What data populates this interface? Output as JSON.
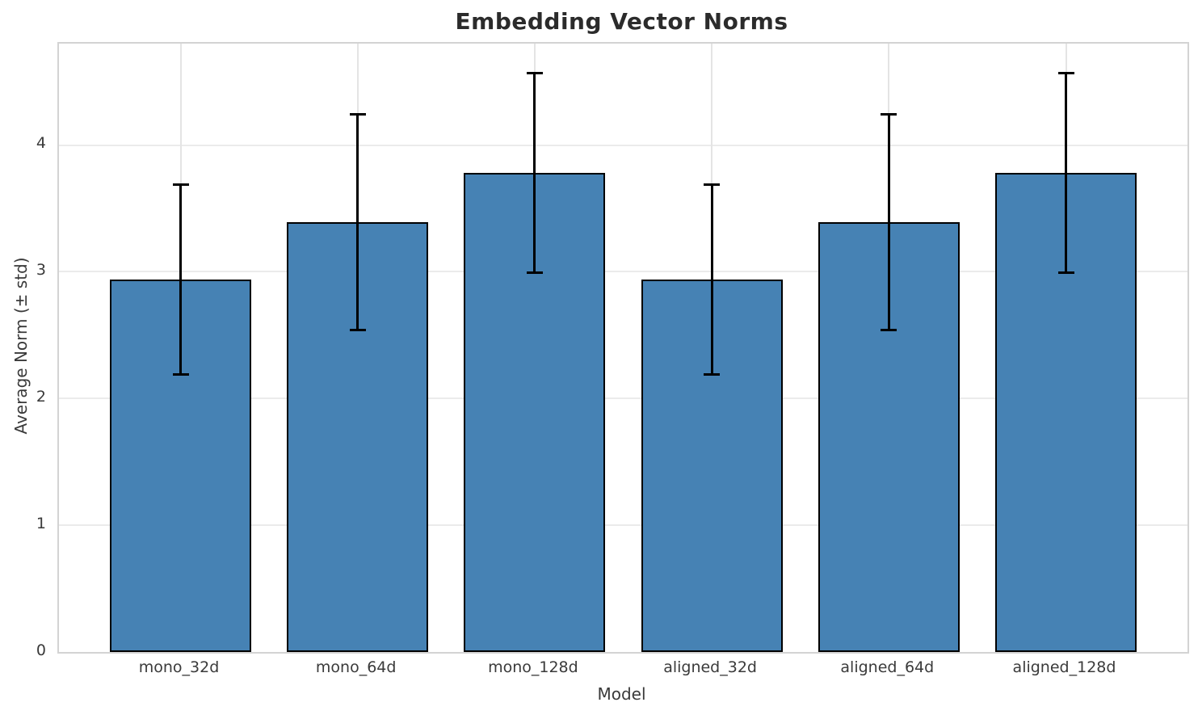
{
  "chart_data": {
    "type": "bar",
    "title": "Embedding Vector Norms",
    "xlabel": "Model",
    "ylabel": "Average Norm (± std)",
    "categories": [
      "mono_32d",
      "mono_64d",
      "mono_128d",
      "aligned_32d",
      "aligned_64d",
      "aligned_128d"
    ],
    "values": [
      2.94,
      3.39,
      3.78,
      2.94,
      3.39,
      3.78
    ],
    "errors": [
      0.75,
      0.85,
      0.79,
      0.75,
      0.85,
      0.79
    ],
    "yticks": [
      0,
      1,
      2,
      3,
      4
    ],
    "ylim": [
      0,
      4.8
    ],
    "grid": true,
    "legend": "none",
    "bar_color": "#4682B4",
    "bar_edge_color": "#000000",
    "error_color": "#000000",
    "grid_color": "#ebebeb",
    "frame_color": "#d3d3d3",
    "text_color": "#3a3a3a",
    "title_color": "#2b2b2b",
    "background_color": "#ffffff"
  }
}
